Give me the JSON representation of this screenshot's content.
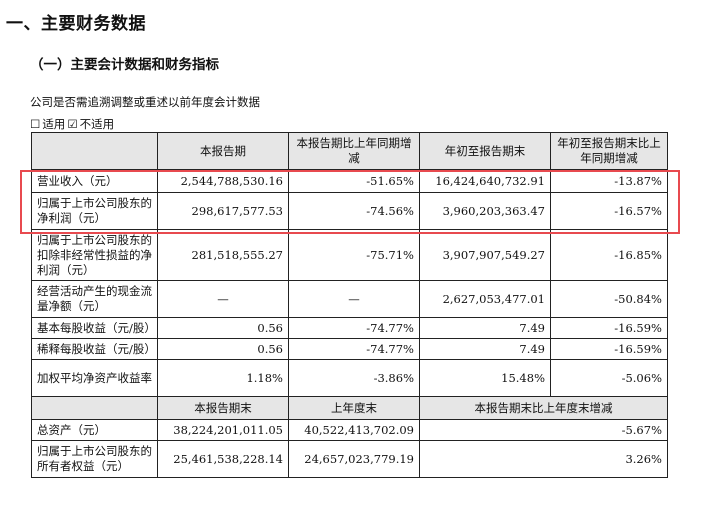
{
  "section_title": "一、主要财务数据",
  "subsection_title": "（一）主要会计数据和财务指标",
  "restatement_note": "公司是否需追溯调整或重述以前年度会计数据",
  "options": [
    {
      "box": "☐",
      "label": "适用"
    },
    {
      "box": "☑",
      "label": "不适用"
    }
  ],
  "headers_top": [
    "",
    "本报告期",
    "本报告期比上年同期增减",
    "年初至报告期末",
    "年初至报告期末比上年同期增减"
  ],
  "rows_top": [
    {
      "label": "营业收入（元）",
      "c1": "2,544,788,530.16",
      "c2": "-51.65%",
      "c3": "16,424,640,732.91",
      "c4": "-13.87%"
    },
    {
      "label": "归属于上市公司股东的净利润（元）",
      "c1": "298,617,577.53",
      "c2": "-74.56%",
      "c3": "3,960,203,363.47",
      "c4": "-16.57%"
    },
    {
      "label": "归属于上市公司股东的扣除非经常性损益的净利润（元）",
      "c1": "281,518,555.27",
      "c2": "-75.71%",
      "c3": "3,907,907,549.27",
      "c4": "-16.85%"
    },
    {
      "label": "经营活动产生的现金流量净额（元）",
      "c1": "—",
      "c2": "—",
      "c3": "2,627,053,477.01",
      "c4": "-50.84%"
    },
    {
      "label": "基本每股收益（元/股）",
      "c1": "0.56",
      "c2": "-74.77%",
      "c3": "7.49",
      "c4": "-16.59%"
    },
    {
      "label": "稀释每股收益（元/股）",
      "c1": "0.56",
      "c2": "-74.77%",
      "c3": "7.49",
      "c4": "-16.59%"
    },
    {
      "label": "加权平均净资产收益率",
      "c1": "1.18%",
      "c2": "-3.86%",
      "c3": "15.48%",
      "c4": "-5.06%"
    }
  ],
  "headers_bottom": [
    "",
    "本报告期末",
    "上年度末",
    "本报告期末比上年度末增减"
  ],
  "rows_bottom": [
    {
      "label": "总资产（元）",
      "c1": "38,224,201,011.05",
      "c2": "40,522,413,702.09",
      "c3": "-5.67%"
    },
    {
      "label": "归属于上市公司股东的所有者权益（元）",
      "c1": "25,461,538,228.14",
      "c2": "24,657,023,779.19",
      "c3": "3.26%"
    }
  ]
}
